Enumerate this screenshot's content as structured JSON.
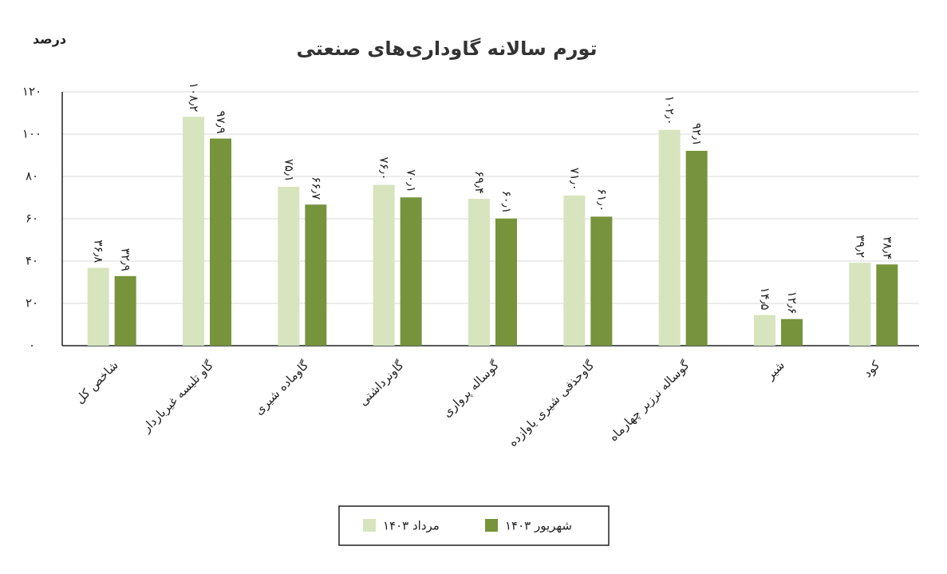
{
  "chart_data": {
    "type": "bar",
    "title": "تورم سالانه گاوداری‌های صنعتی",
    "y_label": "درصد",
    "categories": [
      "شاخص کل",
      "گاو تلیسه غیرباردار",
      "گاوماده شیری",
      "گاونرداشتی",
      "گوساله پرواری",
      "گاوحذفی شیری یاوازده",
      "گوساله نرزیر چهارماه",
      "شیر",
      "کود"
    ],
    "series": [
      {
        "name": "مرداد ۱۴۰۳",
        "color": "#d7e4bd",
        "values": [
          36.8,
          108.2,
          75.1,
          76.0,
          69.4,
          71.0,
          102.0,
          14.5,
          39.2
        ],
        "value_labels": [
          "۳۶٫۸",
          "۱۰۸٫۲",
          "۷۵٫۱",
          "۷۶٫۰",
          "۶۹٫۴",
          "۷۱٫۰",
          "۱۰۲٫۰",
          "۱۴٫۵",
          "۳۹٫۲"
        ]
      },
      {
        "name": "شهریور ۱۴۰۳",
        "color": "#77933c",
        "values": [
          32.9,
          97.9,
          66.7,
          70.1,
          60.1,
          61.0,
          92.1,
          12.6,
          38.4
        ],
        "value_labels": [
          "۳۲٫۹",
          "۹۷٫۹",
          "۶۶٫۷",
          "۷۰٫۱",
          "۶۰٫۱",
          "۶۱٫۰",
          "۹۲٫۱",
          "۱۲٫۶",
          "۳۸٫۴"
        ]
      }
    ],
    "ylim": [
      0,
      120
    ],
    "yticks": [
      {
        "value": 0,
        "label": "۰"
      },
      {
        "value": 20,
        "label": "۲۰"
      },
      {
        "value": 40,
        "label": "۴۰"
      },
      {
        "value": 60,
        "label": "۶۰"
      },
      {
        "value": 80,
        "label": "۸۰"
      },
      {
        "value": 100,
        "label": "۱۰۰"
      },
      {
        "value": 120,
        "label": "۱۲۰"
      }
    ],
    "grid": true
  }
}
